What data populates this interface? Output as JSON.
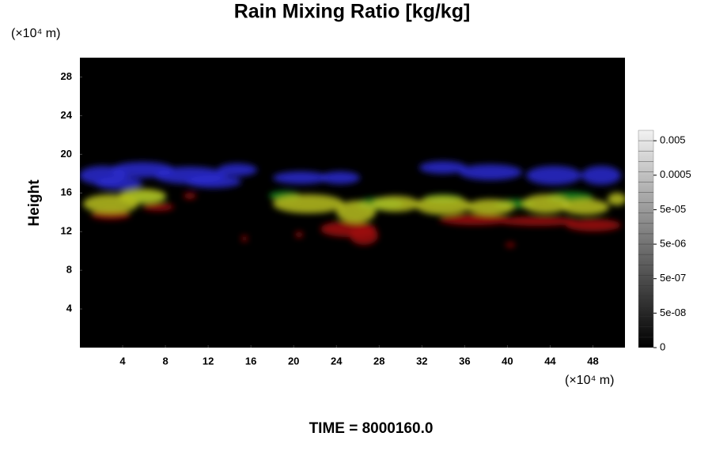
{
  "chart_data": {
    "type": "volume",
    "title": "Rain Mixing Ratio [kg/kg]",
    "y_label": "Height",
    "y_unit": "(×10⁴ m)",
    "x_unit": "(×10⁴ m)",
    "time_label": "TIME = 8000160.0",
    "xlim": [
      0,
      51
    ],
    "ylim": [
      0,
      30
    ],
    "xticks": [
      4,
      8,
      12,
      16,
      20,
      24,
      28,
      32,
      36,
      40,
      44,
      48
    ],
    "yticks": [
      4,
      8,
      12,
      16,
      20,
      24,
      28
    ],
    "background": "#000000",
    "colorbar": {
      "scale": "symlog",
      "linthresh": 5e-08,
      "lim": [
        0,
        0.01
      ],
      "ticks": [
        0,
        {
          "value": 5e-08,
          "label": "5e-08"
        },
        {
          "value": 5e-07,
          "label": "5e-07"
        },
        {
          "value": 5e-06,
          "label": "5e-06"
        },
        {
          "value": 5e-05,
          "label": "5e-05"
        },
        0.0005,
        0.005
      ]
    }
  }
}
